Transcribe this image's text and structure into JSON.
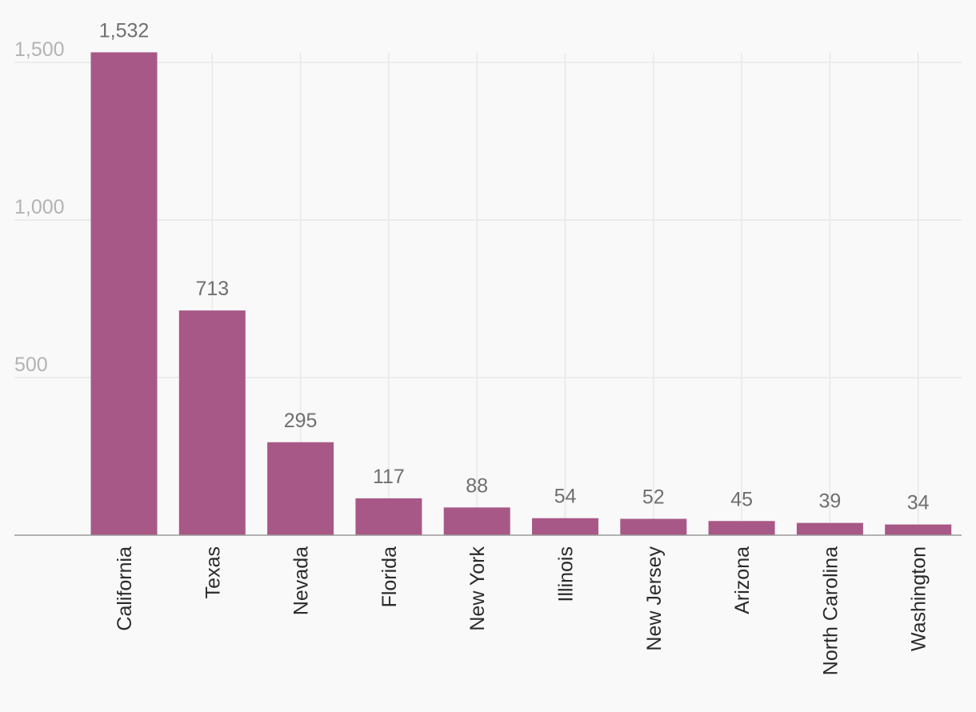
{
  "chart_data": {
    "type": "bar",
    "title": "",
    "xlabel": "",
    "ylabel": "",
    "categories": [
      "California",
      "Texas",
      "Nevada",
      "Florida",
      "New York",
      "Illinois",
      "New Jersey",
      "Arizona",
      "North Carolina",
      "Washington"
    ],
    "values": [
      1532,
      713,
      295,
      117,
      88,
      54,
      52,
      45,
      39,
      34
    ],
    "value_labels": [
      "1,532",
      "713",
      "295",
      "117",
      "88",
      "54",
      "52",
      "45",
      "39",
      "34"
    ],
    "ylim": [
      0,
      1500
    ],
    "yticks": [
      500,
      1000,
      1500
    ],
    "ytick_labels": [
      "500",
      "1,000",
      "1,500"
    ],
    "grid": true,
    "colors": {
      "bar": "#a85887",
      "grid": "#e8e8e8",
      "axis": "#9a9a9a",
      "background": "#f9f9f9"
    }
  }
}
